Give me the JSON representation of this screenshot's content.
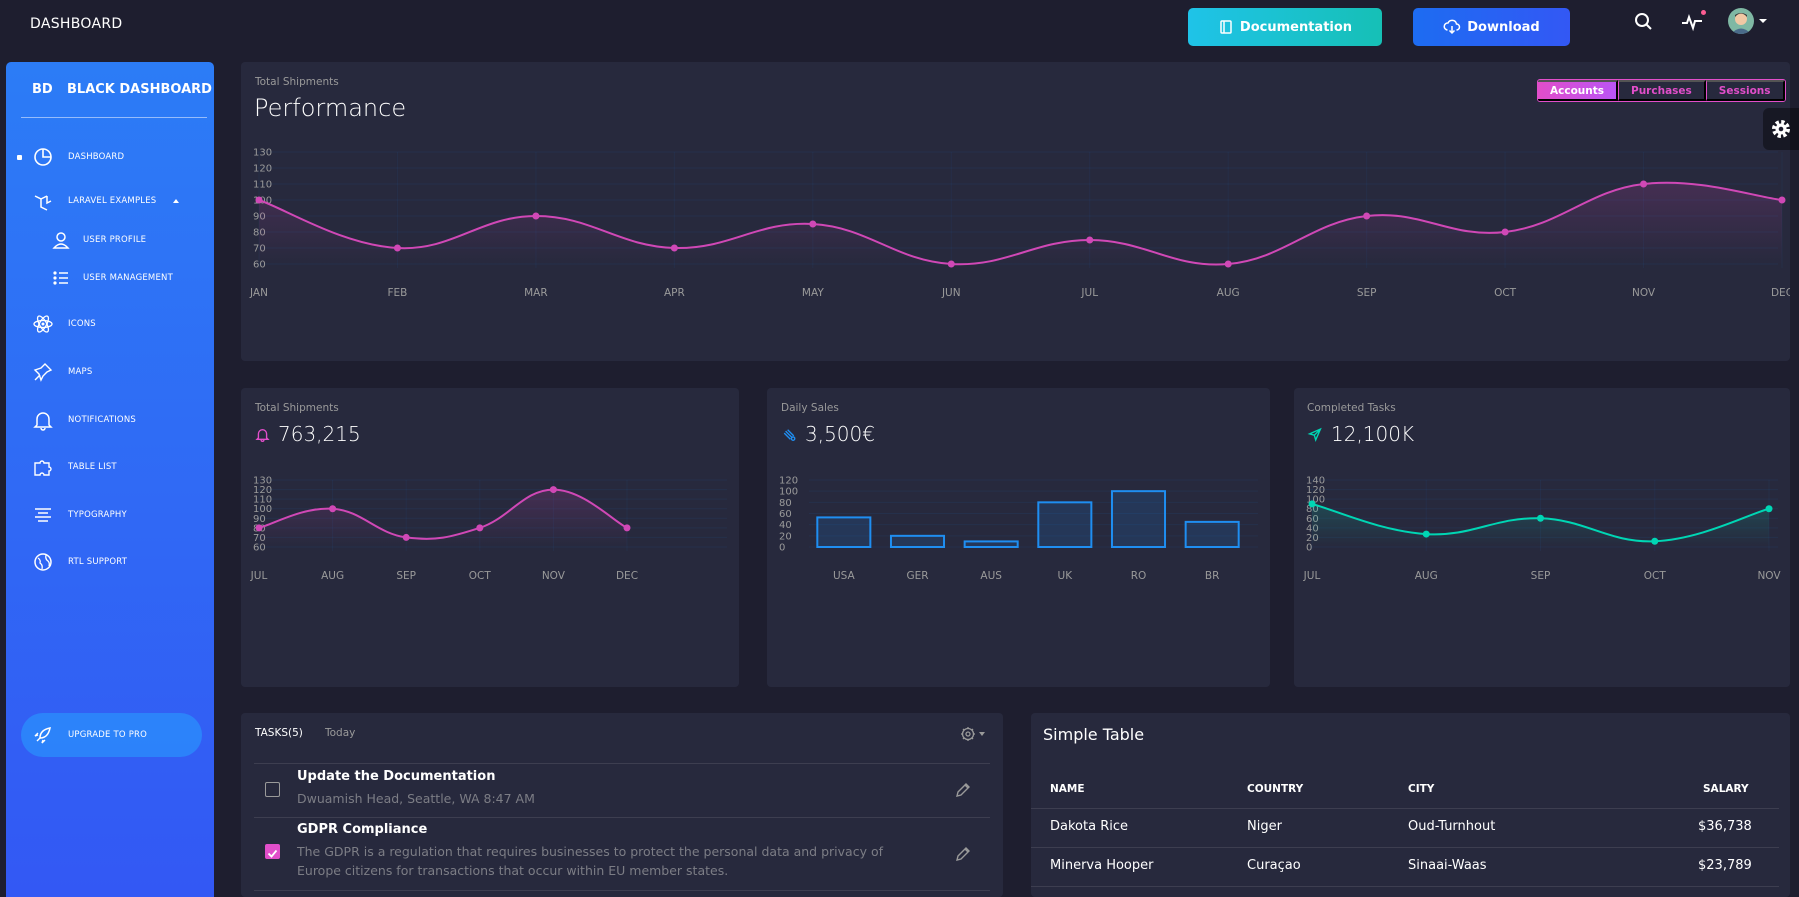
{
  "navbar": {
    "brand": "DASHBOARD",
    "documentation_label": "Documentation",
    "download_label": "Download"
  },
  "sidebar": {
    "logo_mini": "BD",
    "logo_name": "BLACK DASHBOARD",
    "items": [
      {
        "label": "DASHBOARD",
        "icon": "chart-pie-icon"
      },
      {
        "label": "LARAVEL EXAMPLES",
        "icon": "laravel-icon"
      },
      {
        "label": "USER PROFILE",
        "icon": "user-icon"
      },
      {
        "label": "USER MANAGEMENT",
        "icon": "bullet-list-icon"
      },
      {
        "label": "ICONS",
        "icon": "atom-icon"
      },
      {
        "label": "MAPS",
        "icon": "pin-icon"
      },
      {
        "label": "NOTIFICATIONS",
        "icon": "bell-icon"
      },
      {
        "label": "TABLE LIST",
        "icon": "puzzle-icon"
      },
      {
        "label": "TYPOGRAPHY",
        "icon": "align-center-icon"
      },
      {
        "label": "RTL SUPPORT",
        "icon": "world-icon"
      },
      {
        "label": "UPGRADE TO PRO",
        "icon": "rocket-icon"
      }
    ]
  },
  "performance": {
    "category": "Total Shipments",
    "title": "Performance",
    "tabs": [
      "Accounts",
      "Purchases",
      "Sessions"
    ],
    "active_tab": "Accounts"
  },
  "small_cards": [
    {
      "category": "Total Shipments",
      "value": "763,215",
      "icon": "bell-icon"
    },
    {
      "category": "Daily Sales",
      "value": "3,500€",
      "icon": "delivery-fast-icon"
    },
    {
      "category": "Completed Tasks",
      "value": "12,100K",
      "icon": "send-icon"
    }
  ],
  "chart_data": [
    {
      "type": "line",
      "title": "Performance",
      "categories": [
        "JAN",
        "FEB",
        "MAR",
        "APR",
        "MAY",
        "JUN",
        "JUL",
        "AUG",
        "SEP",
        "OCT",
        "NOV",
        "DEC"
      ],
      "values": [
        100,
        70,
        90,
        70,
        85,
        60,
        75,
        60,
        90,
        80,
        110,
        100
      ],
      "ylim": [
        60,
        130
      ],
      "yticks": [
        60,
        70,
        80,
        90,
        100,
        110,
        120,
        130
      ],
      "color": "#d048b6",
      "grid": true
    },
    {
      "type": "line",
      "title": "763,215",
      "categories": [
        "JUL",
        "AUG",
        "SEP",
        "OCT",
        "NOV",
        "DEC"
      ],
      "values": [
        80,
        100,
        70,
        80,
        120,
        80
      ],
      "ylim": [
        60,
        130
      ],
      "yticks": [
        60,
        70,
        80,
        90,
        100,
        110,
        120,
        130
      ],
      "color": "#d048b6",
      "grid": true
    },
    {
      "type": "bar",
      "title": "3,500€",
      "categories": [
        "USA",
        "GER",
        "AUS",
        "UK",
        "RO",
        "BR"
      ],
      "values": [
        53,
        20,
        10,
        80,
        100,
        45
      ],
      "ylim": [
        0,
        120
      ],
      "yticks": [
        0,
        20,
        40,
        60,
        80,
        100,
        120
      ],
      "color": "#1f8ef1",
      "grid": true
    },
    {
      "type": "line",
      "title": "12,100K",
      "categories": [
        "JUL",
        "AUG",
        "SEP",
        "OCT",
        "NOV"
      ],
      "values": [
        90,
        27,
        60,
        12,
        80
      ],
      "ylim": [
        0,
        140
      ],
      "yticks": [
        0,
        20,
        40,
        60,
        80,
        100,
        120,
        140
      ],
      "color": "#00d6b4",
      "grid": true
    }
  ],
  "tasks": {
    "header": "TASKS(5)",
    "subheader": "Today",
    "items": [
      {
        "title": "Update the Documentation",
        "desc": "Dwuamish Head, Seattle, WA 8:47 AM",
        "checked": false
      },
      {
        "title": "GDPR Compliance",
        "desc": "The GDPR is a regulation that requires businesses to protect the personal data and privacy of Europe citizens for transactions that occur within EU member states.",
        "checked": true
      }
    ]
  },
  "table": {
    "title": "Simple Table",
    "headers": [
      "NAME",
      "COUNTRY",
      "CITY",
      "SALARY"
    ],
    "rows": [
      [
        "Dakota Rice",
        "Niger",
        "Oud-Turnhout",
        "$36,738"
      ],
      [
        "Minerva Hooper",
        "Curaçao",
        "Sinaai-Waas",
        "$23,789"
      ]
    ]
  }
}
